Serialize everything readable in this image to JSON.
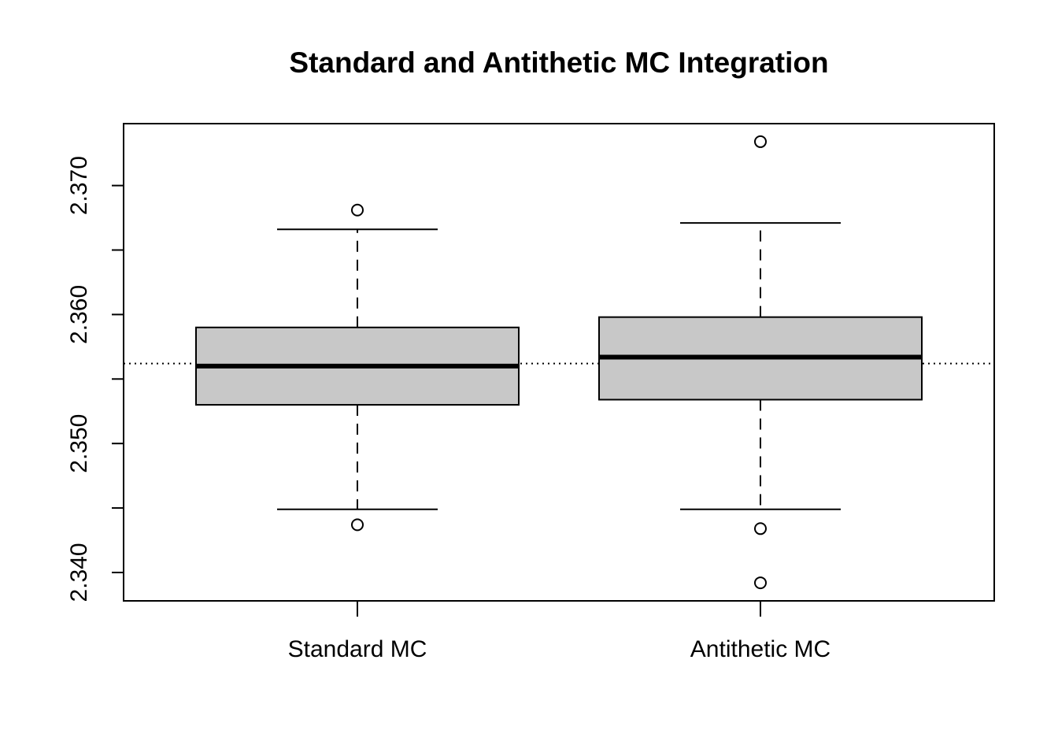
{
  "chart_data": {
    "type": "boxplot",
    "title": "Standard and Antithetic MC Integration",
    "xlabel": "",
    "ylabel": "",
    "ylim": [
      2.3378,
      2.3748
    ],
    "y_ticks": [
      {
        "value": 2.34,
        "label": "2.340"
      },
      {
        "value": 2.345,
        "label": ""
      },
      {
        "value": 2.35,
        "label": "2.350"
      },
      {
        "value": 2.355,
        "label": ""
      },
      {
        "value": 2.36,
        "label": "2.360"
      },
      {
        "value": 2.365,
        "label": ""
      },
      {
        "value": 2.37,
        "label": "2.370"
      }
    ],
    "categories": [
      "Standard MC",
      "Antithetic MC"
    ],
    "boxes": [
      {
        "name": "Standard MC",
        "whisker_low": 2.3449,
        "q1": 2.353,
        "median": 2.356,
        "q3": 2.359,
        "whisker_high": 2.3666,
        "outliers": [
          2.3681,
          2.3437
        ]
      },
      {
        "name": "Antithetic MC",
        "whisker_low": 2.3449,
        "q1": 2.3534,
        "median": 2.3567,
        "q3": 2.3598,
        "whisker_high": 2.3671,
        "outliers": [
          2.3734,
          2.3434,
          2.3392
        ]
      }
    ],
    "reference_line": 2.3562,
    "box_fill": "#c8c8c8",
    "grid": false,
    "legend": "none"
  }
}
